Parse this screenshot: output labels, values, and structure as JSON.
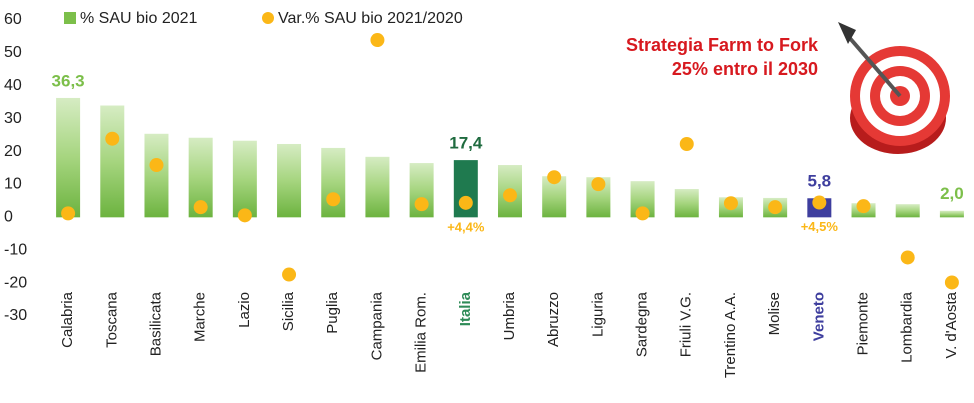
{
  "chart_data": {
    "type": "bar",
    "categories": [
      "Calabria",
      "Toscana",
      "Basilicata",
      "Marche",
      "Lazio",
      "Sicilia",
      "Puglia",
      "Campania",
      "Emilia Rom.",
      "Italia",
      "Umbria",
      "Abruzzo",
      "Liguria",
      "Sardegna",
      "Friuli V.G.",
      "Trentino A.A.",
      "Molise",
      "Veneto",
      "Piemonte",
      "Lombardia",
      "V. d'Aosta"
    ],
    "category_colors": [
      null,
      null,
      null,
      null,
      null,
      null,
      null,
      null,
      null,
      "#2e8b57",
      null,
      null,
      null,
      null,
      null,
      null,
      null,
      "#3e3e9e",
      null,
      null,
      null
    ],
    "series": [
      {
        "name": "% SAU bio 2021",
        "type": "bar",
        "color": "#7cbf4a",
        "point_colors": [
          null,
          null,
          null,
          null,
          null,
          null,
          null,
          null,
          null,
          "#1f7a4f",
          null,
          null,
          null,
          null,
          null,
          null,
          null,
          "#3e3e9e",
          null,
          null,
          null
        ],
        "values": [
          36.3,
          34.0,
          25.4,
          24.2,
          23.3,
          22.3,
          21.1,
          18.4,
          16.5,
          17.4,
          15.9,
          12.5,
          12.2,
          11.0,
          8.6,
          6.1,
          5.9,
          5.8,
          4.3,
          4.0,
          2.0
        ],
        "value_labels": [
          "36,3",
          null,
          null,
          null,
          null,
          null,
          null,
          null,
          null,
          "17,4",
          null,
          null,
          null,
          null,
          null,
          null,
          null,
          "5,8",
          null,
          null,
          "2,0"
        ],
        "label_colors": [
          "#7cbf4a",
          null,
          null,
          null,
          null,
          null,
          null,
          null,
          null,
          "#1f6b3f",
          null,
          null,
          null,
          null,
          null,
          null,
          null,
          "#3e3e9e",
          null,
          null,
          "#7cbf4a"
        ]
      },
      {
        "name": "Var.% SAU bio 2021/2020",
        "type": "scatter",
        "color": "#fbb717",
        "values": [
          1.2,
          23.9,
          15.9,
          3.1,
          0.6,
          -17.4,
          5.5,
          53.9,
          4.0,
          4.4,
          6.7,
          12.2,
          10.1,
          1.2,
          22.3,
          4.3,
          3.1,
          4.5,
          3.4,
          -12.2,
          -19.8
        ],
        "value_labels": [
          null,
          null,
          null,
          null,
          null,
          null,
          null,
          null,
          null,
          "+4,4%",
          null,
          null,
          null,
          null,
          null,
          null,
          null,
          "+4,5%",
          null,
          null,
          null
        ]
      }
    ],
    "ylim": [
      -30,
      60
    ],
    "yticks": [
      -30,
      -20,
      -10,
      0,
      10,
      20,
      30,
      40,
      50,
      60
    ],
    "grid": false,
    "annotations": [
      "Strategia Farm to Fork",
      "25% entro il 2030"
    ]
  }
}
